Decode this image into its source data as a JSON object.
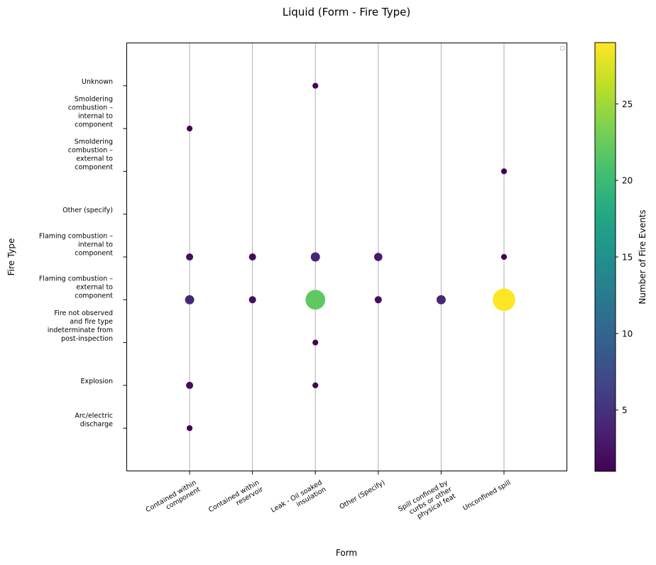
{
  "chart_data": {
    "type": "scatter",
    "title": "Liquid (Form - Fire Type)",
    "xlabel": "Form",
    "ylabel": "Fire Type",
    "colorbar_label": "Number of Fire Events",
    "colormap": "viridis",
    "color_range": [
      1,
      29
    ],
    "colorbar_ticks": [
      5,
      10,
      15,
      20,
      25
    ],
    "grid": "vertical lines at x ticks",
    "legend": "empty box at top-right",
    "x_categories": [
      [
        "Contained within",
        "component"
      ],
      [
        "Contained within",
        "reservoir"
      ],
      [
        "Leak - Oil soaked",
        "insulation"
      ],
      [
        "Other (Specify)"
      ],
      [
        "Spill confined by",
        "curbs or other",
        "physical feat"
      ],
      [
        "Unconfined spill"
      ]
    ],
    "y_categories": [
      [
        "Arc/electric",
        "discharge"
      ],
      [
        "Explosion"
      ],
      [
        "Fire not observed",
        "and fire type",
        "indeterminate from",
        "post-inspection"
      ],
      [
        "Flaming combustion –",
        "external to",
        "component"
      ],
      [
        "Flaming combustion –",
        "internal to",
        "component"
      ],
      [
        "Other (specify)"
      ],
      [
        "Smoldering",
        "combustion –",
        "external to",
        "component"
      ],
      [
        "Smoldering",
        "combustion –",
        "internal to",
        "component"
      ],
      [
        "Unknown"
      ]
    ],
    "points": [
      {
        "x": 0,
        "y": 0,
        "count": 1
      },
      {
        "x": 0,
        "y": 1,
        "count": 2
      },
      {
        "x": 0,
        "y": 3,
        "count": 4
      },
      {
        "x": 0,
        "y": 4,
        "count": 2
      },
      {
        "x": 0,
        "y": 7,
        "count": 1
      },
      {
        "x": 1,
        "y": 3,
        "count": 2
      },
      {
        "x": 1,
        "y": 4,
        "count": 2
      },
      {
        "x": 2,
        "y": 1,
        "count": 1
      },
      {
        "x": 2,
        "y": 2,
        "count": 1
      },
      {
        "x": 2,
        "y": 3,
        "count": 22
      },
      {
        "x": 2,
        "y": 4,
        "count": 4
      },
      {
        "x": 2,
        "y": 8,
        "count": 1
      },
      {
        "x": 3,
        "y": 3,
        "count": 2
      },
      {
        "x": 3,
        "y": 4,
        "count": 3
      },
      {
        "x": 4,
        "y": 3,
        "count": 4
      },
      {
        "x": 5,
        "y": 3,
        "count": 29
      },
      {
        "x": 5,
        "y": 4,
        "count": 1
      },
      {
        "x": 5,
        "y": 6,
        "count": 1
      }
    ]
  }
}
